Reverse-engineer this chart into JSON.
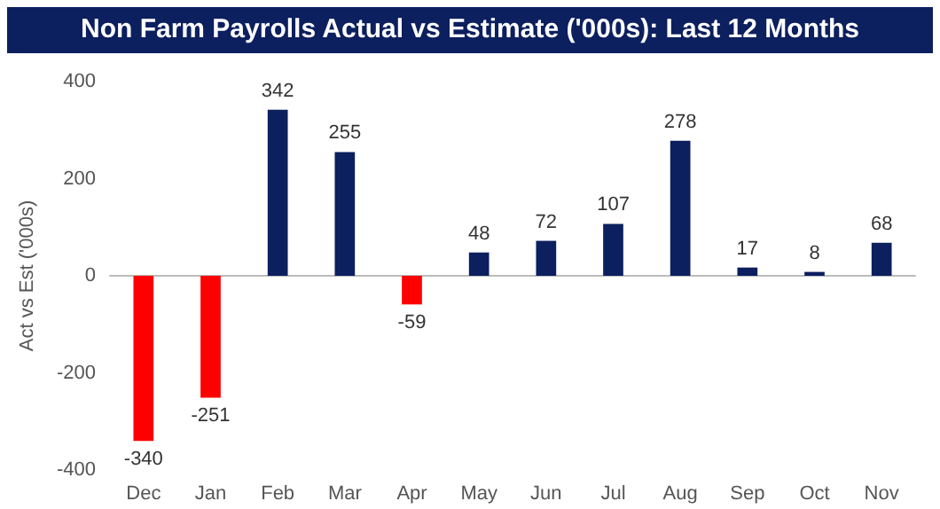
{
  "chart_data": {
    "type": "bar",
    "title": "Non Farm Payrolls Actual vs Estimate ('000s): Last 12 Months",
    "ylabel": "Act vs Est ('000s)",
    "categories": [
      "Dec",
      "Jan",
      "Feb",
      "Mar",
      "Apr",
      "May",
      "Jun",
      "Jul",
      "Aug",
      "Sep",
      "Oct",
      "Nov"
    ],
    "values": [
      -340,
      -251,
      342,
      255,
      -59,
      48,
      72,
      107,
      278,
      17,
      8,
      68
    ],
    "colors": [
      "#ff0000",
      "#ff0000",
      "#0c1f5e",
      "#0c1f5e",
      "#ff0000",
      "#0c1f5e",
      "#0c1f5e",
      "#0c1f5e",
      "#0c1f5e",
      "#0c1f5e",
      "#0c1f5e",
      "#0c1f5e"
    ],
    "ylim": [
      -400,
      400
    ],
    "yticks": [
      -400,
      -200,
      0,
      200,
      400
    ],
    "data_labels": true
  }
}
